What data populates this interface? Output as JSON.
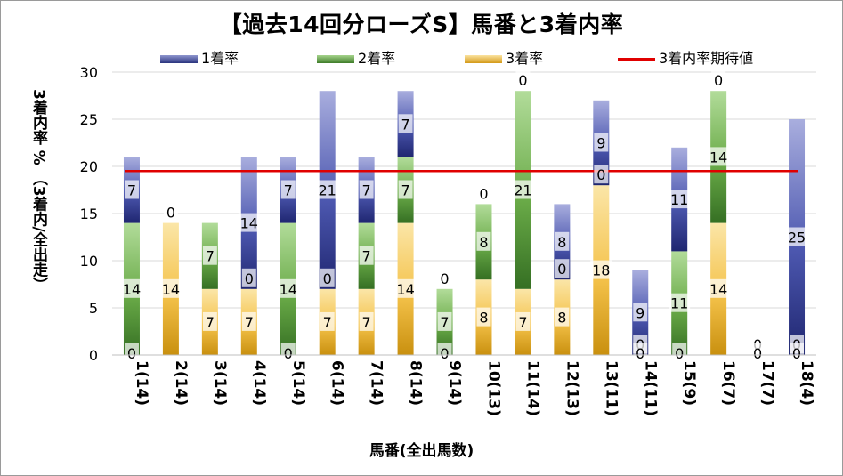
{
  "chart_data": {
    "type": "bar",
    "stacked": true,
    "title": "【過去14回分ローズS】馬番と3着内率",
    "xlabel": "馬番(全出馬数)",
    "ylabel": "3着内率 % （3着内/全出走）",
    "ylim": [
      0,
      30
    ],
    "yticks": [
      "0",
      "5",
      "10",
      "15",
      "20",
      "25",
      "30"
    ],
    "categories": [
      "1(14)",
      "2(14)",
      "3(14)",
      "4(14)",
      "5(14)",
      "6(14)",
      "7(14)",
      "8(14)",
      "9(14)",
      "10(13)",
      "11(14)",
      "12(13)",
      "13(11)",
      "14(11)",
      "15(9)",
      "16(7)",
      "17(7)",
      "18(4)"
    ],
    "series": [
      {
        "name": "3着率",
        "color": "#f0b830",
        "values": [
          0,
          14,
          7,
          7,
          0,
          7,
          7,
          14,
          0,
          8,
          7,
          8,
          18,
          0,
          0,
          14,
          0,
          0
        ],
        "labels": [
          "",
          "14",
          "7",
          "7",
          "",
          "7",
          "7",
          "14",
          "",
          "8",
          "7",
          "8",
          "18",
          "",
          "",
          "14",
          "",
          ""
        ]
      },
      {
        "name": "2着率",
        "color": "#5fa040",
        "values": [
          14,
          0,
          7,
          0,
          14,
          0,
          7,
          7,
          7,
          8,
          21,
          0,
          0,
          0,
          11,
          14,
          0,
          0
        ],
        "labels": [
          "14",
          "0",
          "7",
          "0",
          "14",
          "0",
          "7",
          "7",
          "7",
          "8",
          "21",
          "0",
          "0",
          "0",
          "11",
          "14",
          "0",
          "0"
        ]
      },
      {
        "name": "1着率",
        "color": "#3a45a0",
        "values": [
          7,
          0,
          0,
          14,
          7,
          21,
          7,
          7,
          0,
          0,
          0,
          8,
          9,
          9,
          11,
          0,
          0,
          25
        ],
        "labels": [
          "7",
          "",
          "",
          "14",
          "7",
          "21",
          "7",
          "7",
          "0",
          "0",
          "0",
          "8",
          "9",
          "9",
          "11",
          "0",
          "",
          "25"
        ]
      }
    ],
    "bottom_labels": [
      "0",
      "",
      "",
      "",
      "0",
      "",
      "",
      "",
      "0",
      "",
      "",
      "",
      "",
      "0",
      "0",
      "",
      "0",
      "0"
    ],
    "reference_line": {
      "name": "3着内率期待値",
      "value": 19.5,
      "color": "#e00000"
    },
    "grid": true,
    "legend_position": "top"
  },
  "legend": {
    "first": "1着率",
    "second": "2着率",
    "third": "3着率",
    "expected": "3着内率期待値"
  }
}
